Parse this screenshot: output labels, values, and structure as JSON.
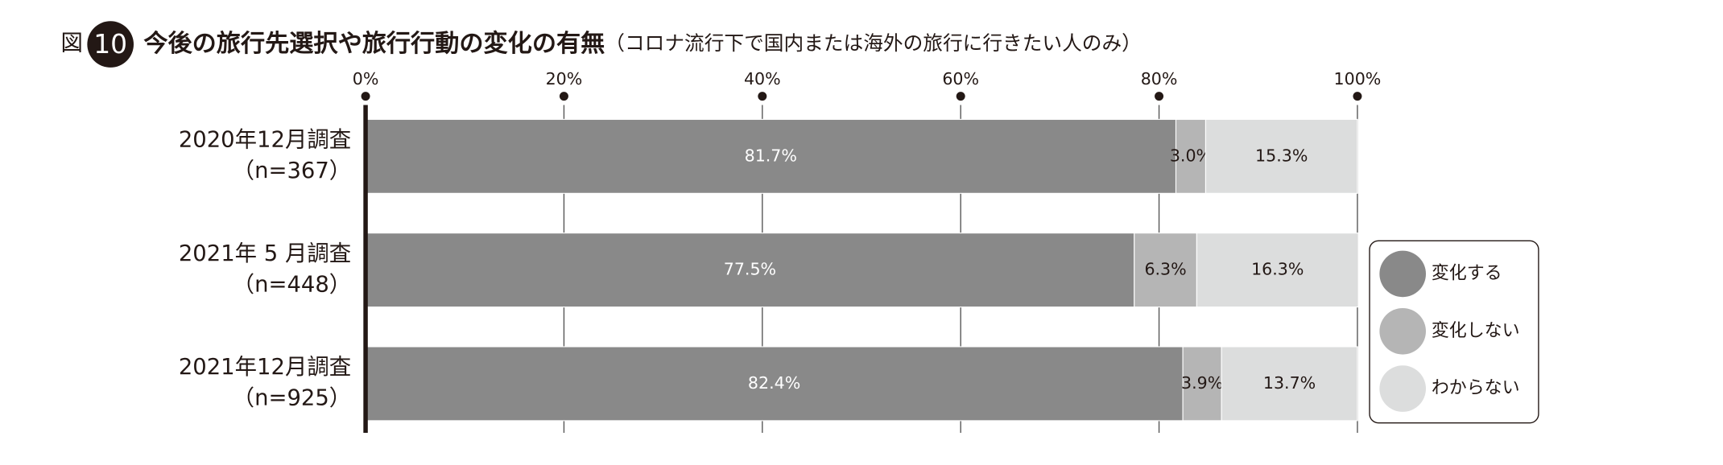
{
  "chart_data": {
    "type": "stacked-barh",
    "figure_label": "図",
    "figure_number": "10",
    "title": "今後の旅行先選択や旅行行動の変化の有無",
    "subtitle": "（コロナ流行下で国内または海外の旅行に行きたい人のみ）",
    "categories": [
      "2020年12月調査",
      "2021年 5 月調査",
      "2021年12月調査"
    ],
    "category_sublabels": [
      "（n=367）",
      "（n=448）",
      "（n=925）"
    ],
    "series": [
      {
        "name": "変化する",
        "color": "#898989",
        "values": [
          81.7,
          77.5,
          82.4
        ],
        "value_labels": [
          "81.7%",
          "77.5%",
          "82.4%"
        ]
      },
      {
        "name": "変化しない",
        "color": "#b5b5b5",
        "values": [
          3.0,
          6.3,
          3.9
        ],
        "value_labels": [
          "3.0%",
          "6.3%",
          "3.9%"
        ]
      },
      {
        "name": "わからない",
        "color": "#dcdddd",
        "values": [
          15.3,
          16.3,
          13.7
        ],
        "value_labels": [
          "15.3%",
          "16.3%",
          "13.7%"
        ]
      }
    ],
    "xlim": [
      0,
      100
    ],
    "xticks": [
      {
        "value": 0,
        "label": "0%"
      },
      {
        "value": 20,
        "label": "20%"
      },
      {
        "value": 40,
        "label": "40%"
      },
      {
        "value": 60,
        "label": "60%"
      },
      {
        "value": 80,
        "label": "80%"
      },
      {
        "value": 100,
        "label": "100%"
      }
    ],
    "grid": true,
    "legend": "right"
  }
}
